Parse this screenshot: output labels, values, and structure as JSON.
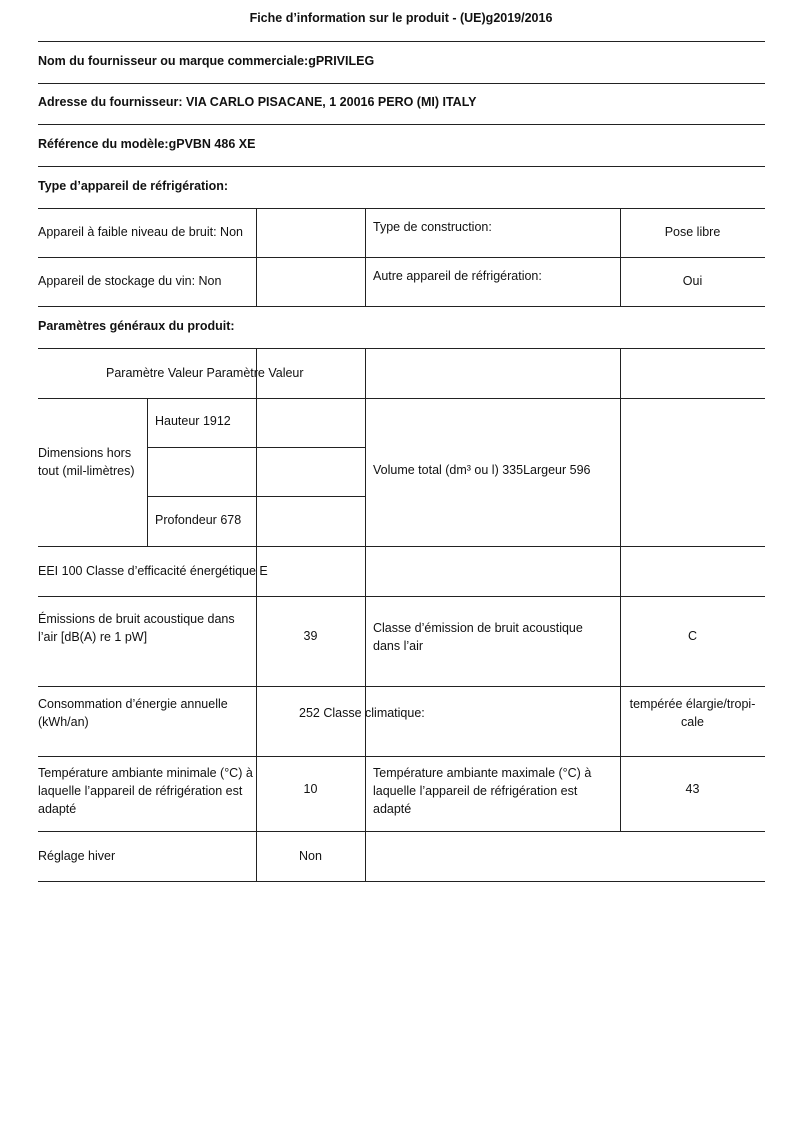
{
  "title": "Fiche d’information sur le produit - (UE)g2019/2016",
  "supplier_name": "Nom du fournisseur ou marque commerciale:gPRIVILEG",
  "supplier_address": "Adresse du fournisseur: VIA CARLO PISACANE, 1 20016 PERO (MI) ITALY",
  "model_reference": "Référence du modèle:gPVBN 486 XE",
  "appliance_type": {
    "heading": "Type d’appareil de réfrigération:",
    "low_noise": "Appareil à faible niveau de bruit: Non",
    "construction_label": "Type de construction:",
    "construction_value": "Pose libre",
    "wine_storage": "Appareil de stockage du vin: Non",
    "other_label": "Autre appareil de réfrigération:",
    "other_value": "Oui"
  },
  "general": {
    "heading": "Paramètres généraux du produit:",
    "header_row": "Paramètre Valeur Paramètre Valeur",
    "dimensions_label": "Dimensions hors tout (mil-limètres)",
    "height": "Hauteur 1912",
    "depth": "Profondeur 678",
    "volume_width": "Volume total (dm³ ou l) 335Largeur 596",
    "eei": "EEI 100 Classe d’efficacité énergétique E",
    "noise_label": "Émissions de bruit acoustique dans\nl’air [dB(A) re 1 pW]",
    "noise_value": "39",
    "noise_class_label": "Classe d’émission de bruit acoustique dans l’air",
    "noise_class_value": "C",
    "energy_label": "Consommation d’énergie annuelle (kWh/an)",
    "energy_value_climate": "252 Classe climatique:",
    "climate_value": "tempérée élargie/tropi-cale",
    "min_temp_label": "Température ambiante minimale (°C) à laquelle l’appareil de réfrigération est adapté",
    "min_temp_value": "10",
    "max_temp_label": "Température ambiante maximale (°C) à laquelle l’appareil de réfrigération est adapté",
    "max_temp_value": "43",
    "winter_label": "Réglage hiver",
    "winter_value": "Non"
  }
}
